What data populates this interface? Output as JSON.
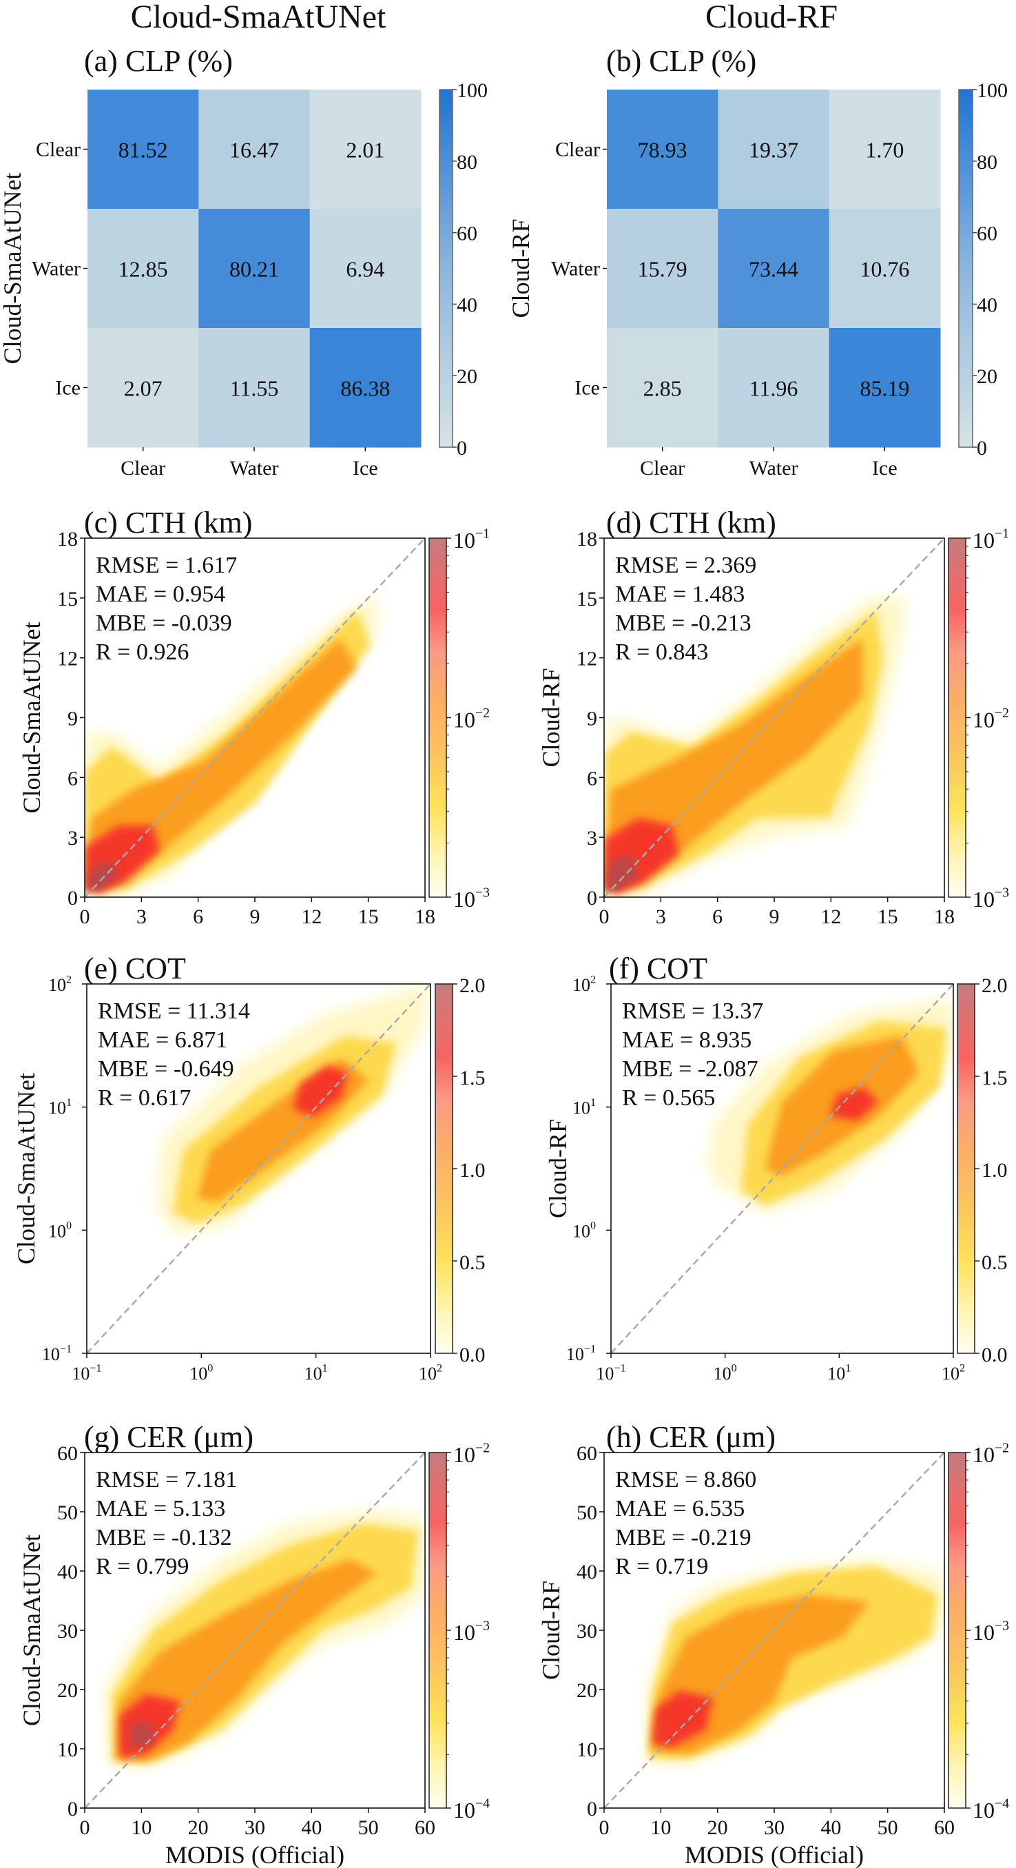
{
  "figure": {
    "column_titles": [
      "Cloud-SmaAtUNet",
      "Cloud-RF"
    ],
    "xlabel_bottom": "MODIS (Official)"
  },
  "chart_data": [
    {
      "id": "a",
      "type": "heatmap",
      "title": "(a) CLP (%)",
      "ylabel": "Cloud-SmaAtUNet",
      "xlabel": "",
      "row_labels": [
        "Clear",
        "Water",
        "Ice"
      ],
      "col_labels": [
        "Clear",
        "Water",
        "Ice"
      ],
      "values": [
        [
          81.52,
          16.47,
          2.01
        ],
        [
          12.85,
          80.21,
          6.94
        ],
        [
          2.07,
          11.55,
          86.38
        ]
      ],
      "value_labels": [
        [
          "81.52",
          "16.47",
          "2.01"
        ],
        [
          "12.85",
          "80.21",
          "6.94"
        ],
        [
          "2.07",
          "11.55",
          "86.38"
        ]
      ],
      "colorbar": {
        "range": [
          0,
          100
        ],
        "ticks": [
          "0",
          "20",
          "40",
          "60",
          "80",
          "100"
        ],
        "cmap_low": "#d6e3e4",
        "cmap_high": "#1f75d6"
      }
    },
    {
      "id": "b",
      "type": "heatmap",
      "title": "(b) CLP (%)",
      "ylabel": "Cloud-RF",
      "xlabel": "",
      "row_labels": [
        "Clear",
        "Water",
        "Ice"
      ],
      "col_labels": [
        "Clear",
        "Water",
        "Ice"
      ],
      "values": [
        [
          78.93,
          19.37,
          1.7
        ],
        [
          15.79,
          73.44,
          10.76
        ],
        [
          2.85,
          11.96,
          85.19
        ]
      ],
      "value_labels": [
        [
          "78.93",
          "19.37",
          "1.70"
        ],
        [
          "15.79",
          "73.44",
          "10.76"
        ],
        [
          "2.85",
          "11.96",
          "85.19"
        ]
      ],
      "colorbar": {
        "range": [
          0,
          100
        ],
        "ticks": [
          "0",
          "20",
          "40",
          "60",
          "80",
          "100"
        ],
        "cmap_low": "#d6e3e4",
        "cmap_high": "#1f75d6"
      }
    },
    {
      "id": "c",
      "type": "scatter",
      "subtype": "density",
      "title": "(c) CTH (km)",
      "ylabel": "Cloud-SmaAtUNet",
      "xlabel": "",
      "scale": "linear",
      "xlim": [
        0,
        18
      ],
      "ylim": [
        0,
        18
      ],
      "xticks": [
        "0",
        "3",
        "6",
        "9",
        "12",
        "15",
        "18"
      ],
      "yticks": [
        "0",
        "3",
        "6",
        "9",
        "12",
        "15",
        "18"
      ],
      "stats": [
        "RMSE = 1.617",
        "MAE = 0.954",
        "MBE = -0.039",
        "R = 0.926"
      ],
      "colorbar": {
        "scale": "log",
        "range": [
          0.001,
          0.1
        ],
        "ticks": [
          {
            "base": "10",
            "exp": "−3"
          },
          {
            "base": "10",
            "exp": "−2"
          },
          {
            "base": "10",
            "exp": "−1"
          }
        ]
      },
      "reference_line": "1:1",
      "density_peak": [
        1.0,
        1.0
      ]
    },
    {
      "id": "d",
      "type": "scatter",
      "subtype": "density",
      "title": "(d) CTH (km)",
      "ylabel": "Cloud-RF",
      "xlabel": "",
      "scale": "linear",
      "xlim": [
        0,
        18
      ],
      "ylim": [
        0,
        18
      ],
      "xticks": [
        "0",
        "3",
        "6",
        "9",
        "12",
        "15",
        "18"
      ],
      "yticks": [
        "0",
        "3",
        "6",
        "9",
        "12",
        "15",
        "18"
      ],
      "stats": [
        "RMSE = 2.369",
        "MAE = 1.483",
        "MBE = -0.213",
        "R = 0.843"
      ],
      "colorbar": {
        "scale": "log",
        "range": [
          0.001,
          0.1
        ],
        "ticks": [
          {
            "base": "10",
            "exp": "−3"
          },
          {
            "base": "10",
            "exp": "−2"
          },
          {
            "base": "10",
            "exp": "−1"
          }
        ]
      },
      "reference_line": "1:1",
      "density_peak": [
        1.0,
        1.2
      ]
    },
    {
      "id": "e",
      "type": "scatter",
      "subtype": "density",
      "title": "(e) COT",
      "ylabel": "Cloud-SmaAtUNet",
      "xlabel": "",
      "scale": "log",
      "xlim": [
        0.1,
        100
      ],
      "ylim": [
        0.1,
        100
      ],
      "xticks": [
        {
          "base": "10",
          "exp": "−1"
        },
        {
          "base": "10",
          "exp": "0"
        },
        {
          "base": "10",
          "exp": "1"
        },
        {
          "base": "10",
          "exp": "2"
        }
      ],
      "yticks": [
        {
          "base": "10",
          "exp": "−1"
        },
        {
          "base": "10",
          "exp": "0"
        },
        {
          "base": "10",
          "exp": "1"
        },
        {
          "base": "10",
          "exp": "2"
        }
      ],
      "stats": [
        "RMSE = 11.314",
        "MAE = 6.871",
        "MBE = -0.649",
        "R = 0.617"
      ],
      "colorbar": {
        "scale": "linear",
        "range": [
          0,
          2
        ],
        "ticks": [
          "0.0",
          "0.5",
          "1.0",
          "1.5",
          "2.0"
        ]
      },
      "reference_line": "1:1",
      "density_peak": [
        10,
        10
      ]
    },
    {
      "id": "f",
      "type": "scatter",
      "subtype": "density",
      "title": "(f) COT",
      "ylabel": "Cloud-RF",
      "xlabel": "",
      "scale": "log",
      "xlim": [
        0.1,
        100
      ],
      "ylim": [
        0.1,
        100
      ],
      "xticks": [
        {
          "base": "10",
          "exp": "−1"
        },
        {
          "base": "10",
          "exp": "0"
        },
        {
          "base": "10",
          "exp": "1"
        },
        {
          "base": "10",
          "exp": "2"
        }
      ],
      "yticks": [
        {
          "base": "10",
          "exp": "−1"
        },
        {
          "base": "10",
          "exp": "0"
        },
        {
          "base": "10",
          "exp": "1"
        },
        {
          "base": "10",
          "exp": "2"
        }
      ],
      "stats": [
        "RMSE = 13.37",
        "MAE = 8.935",
        "MBE = -2.087",
        "R = 0.565"
      ],
      "colorbar": {
        "scale": "linear",
        "range": [
          0,
          2
        ],
        "ticks": [
          "0.0",
          "0.5",
          "1.0",
          "1.5",
          "2.0"
        ]
      },
      "reference_line": "1:1",
      "density_peak": [
        12,
        12
      ]
    },
    {
      "id": "g",
      "type": "scatter",
      "subtype": "density",
      "title": "(g) CER (μm)",
      "ylabel": "Cloud-SmaAtUNet",
      "xlabel": "MODIS (Official)",
      "scale": "linear",
      "xlim": [
        0,
        60
      ],
      "ylim": [
        0,
        60
      ],
      "xticks": [
        "0",
        "10",
        "20",
        "30",
        "40",
        "50",
        "60"
      ],
      "yticks": [
        "0",
        "10",
        "20",
        "30",
        "40",
        "50",
        "60"
      ],
      "stats": [
        "RMSE = 7.181",
        "MAE = 5.133",
        "MBE = -0.132",
        "R = 0.799"
      ],
      "colorbar": {
        "scale": "log",
        "range": [
          0.0001,
          0.01
        ],
        "ticks": [
          {
            "base": "10",
            "exp": "−4"
          },
          {
            "base": "10",
            "exp": "−3"
          },
          {
            "base": "10",
            "exp": "−2"
          }
        ]
      },
      "reference_line": "1:1",
      "density_peak": [
        10,
        12
      ]
    },
    {
      "id": "h",
      "type": "scatter",
      "subtype": "density",
      "title": "(h) CER (μm)",
      "ylabel": "Cloud-RF",
      "xlabel": "MODIS (Official)",
      "scale": "linear",
      "xlim": [
        0,
        60
      ],
      "ylim": [
        0,
        60
      ],
      "xticks": [
        "0",
        "10",
        "20",
        "30",
        "40",
        "50",
        "60"
      ],
      "yticks": [
        "0",
        "10",
        "20",
        "30",
        "40",
        "50",
        "60"
      ],
      "stats": [
        "RMSE = 8.860",
        "MAE = 6.535",
        "MBE = -0.219",
        "R = 0.719"
      ],
      "colorbar": {
        "scale": "log",
        "range": [
          0.0001,
          0.01
        ],
        "ticks": [
          {
            "base": "10",
            "exp": "−4"
          },
          {
            "base": "10",
            "exp": "−3"
          },
          {
            "base": "10",
            "exp": "−2"
          }
        ]
      },
      "reference_line": "1:1",
      "density_peak": [
        12,
        15
      ]
    }
  ]
}
